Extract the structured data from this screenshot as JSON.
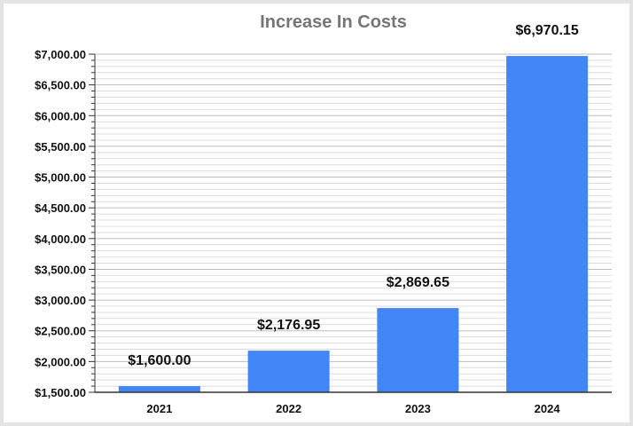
{
  "chart_data": {
    "type": "bar",
    "title": "Increase In Costs",
    "xlabel": "",
    "ylabel": "",
    "categories": [
      "2021",
      "2022",
      "2023",
      "2024"
    ],
    "values": [
      1600.0,
      2176.95,
      2869.65,
      6970.15
    ],
    "data_labels": [
      "$1,600.00",
      "$2,176.95",
      "$2,869.65",
      "$6,970.15"
    ],
    "ylim": [
      1500,
      7000
    ],
    "yticks": [
      1500,
      2000,
      2500,
      3000,
      3500,
      4000,
      4500,
      5000,
      5500,
      6000,
      6500,
      7000
    ],
    "ytick_labels": [
      "$1,500.00",
      "$2,000.00",
      "$2,500.00",
      "$3,000.00",
      "$3,500.00",
      "$4,000.00",
      "$4,500.00",
      "$5,000.00",
      "$5,500.00",
      "$6,000.00",
      "$6,500.00",
      "$7,000.00"
    ],
    "grid": true,
    "legend": "none",
    "colors": {
      "bar": "#4285f4",
      "title": "#757575",
      "grid_major": "#bdbdbd",
      "grid_minor": "#dcdcdc",
      "axis": "#333333"
    }
  }
}
